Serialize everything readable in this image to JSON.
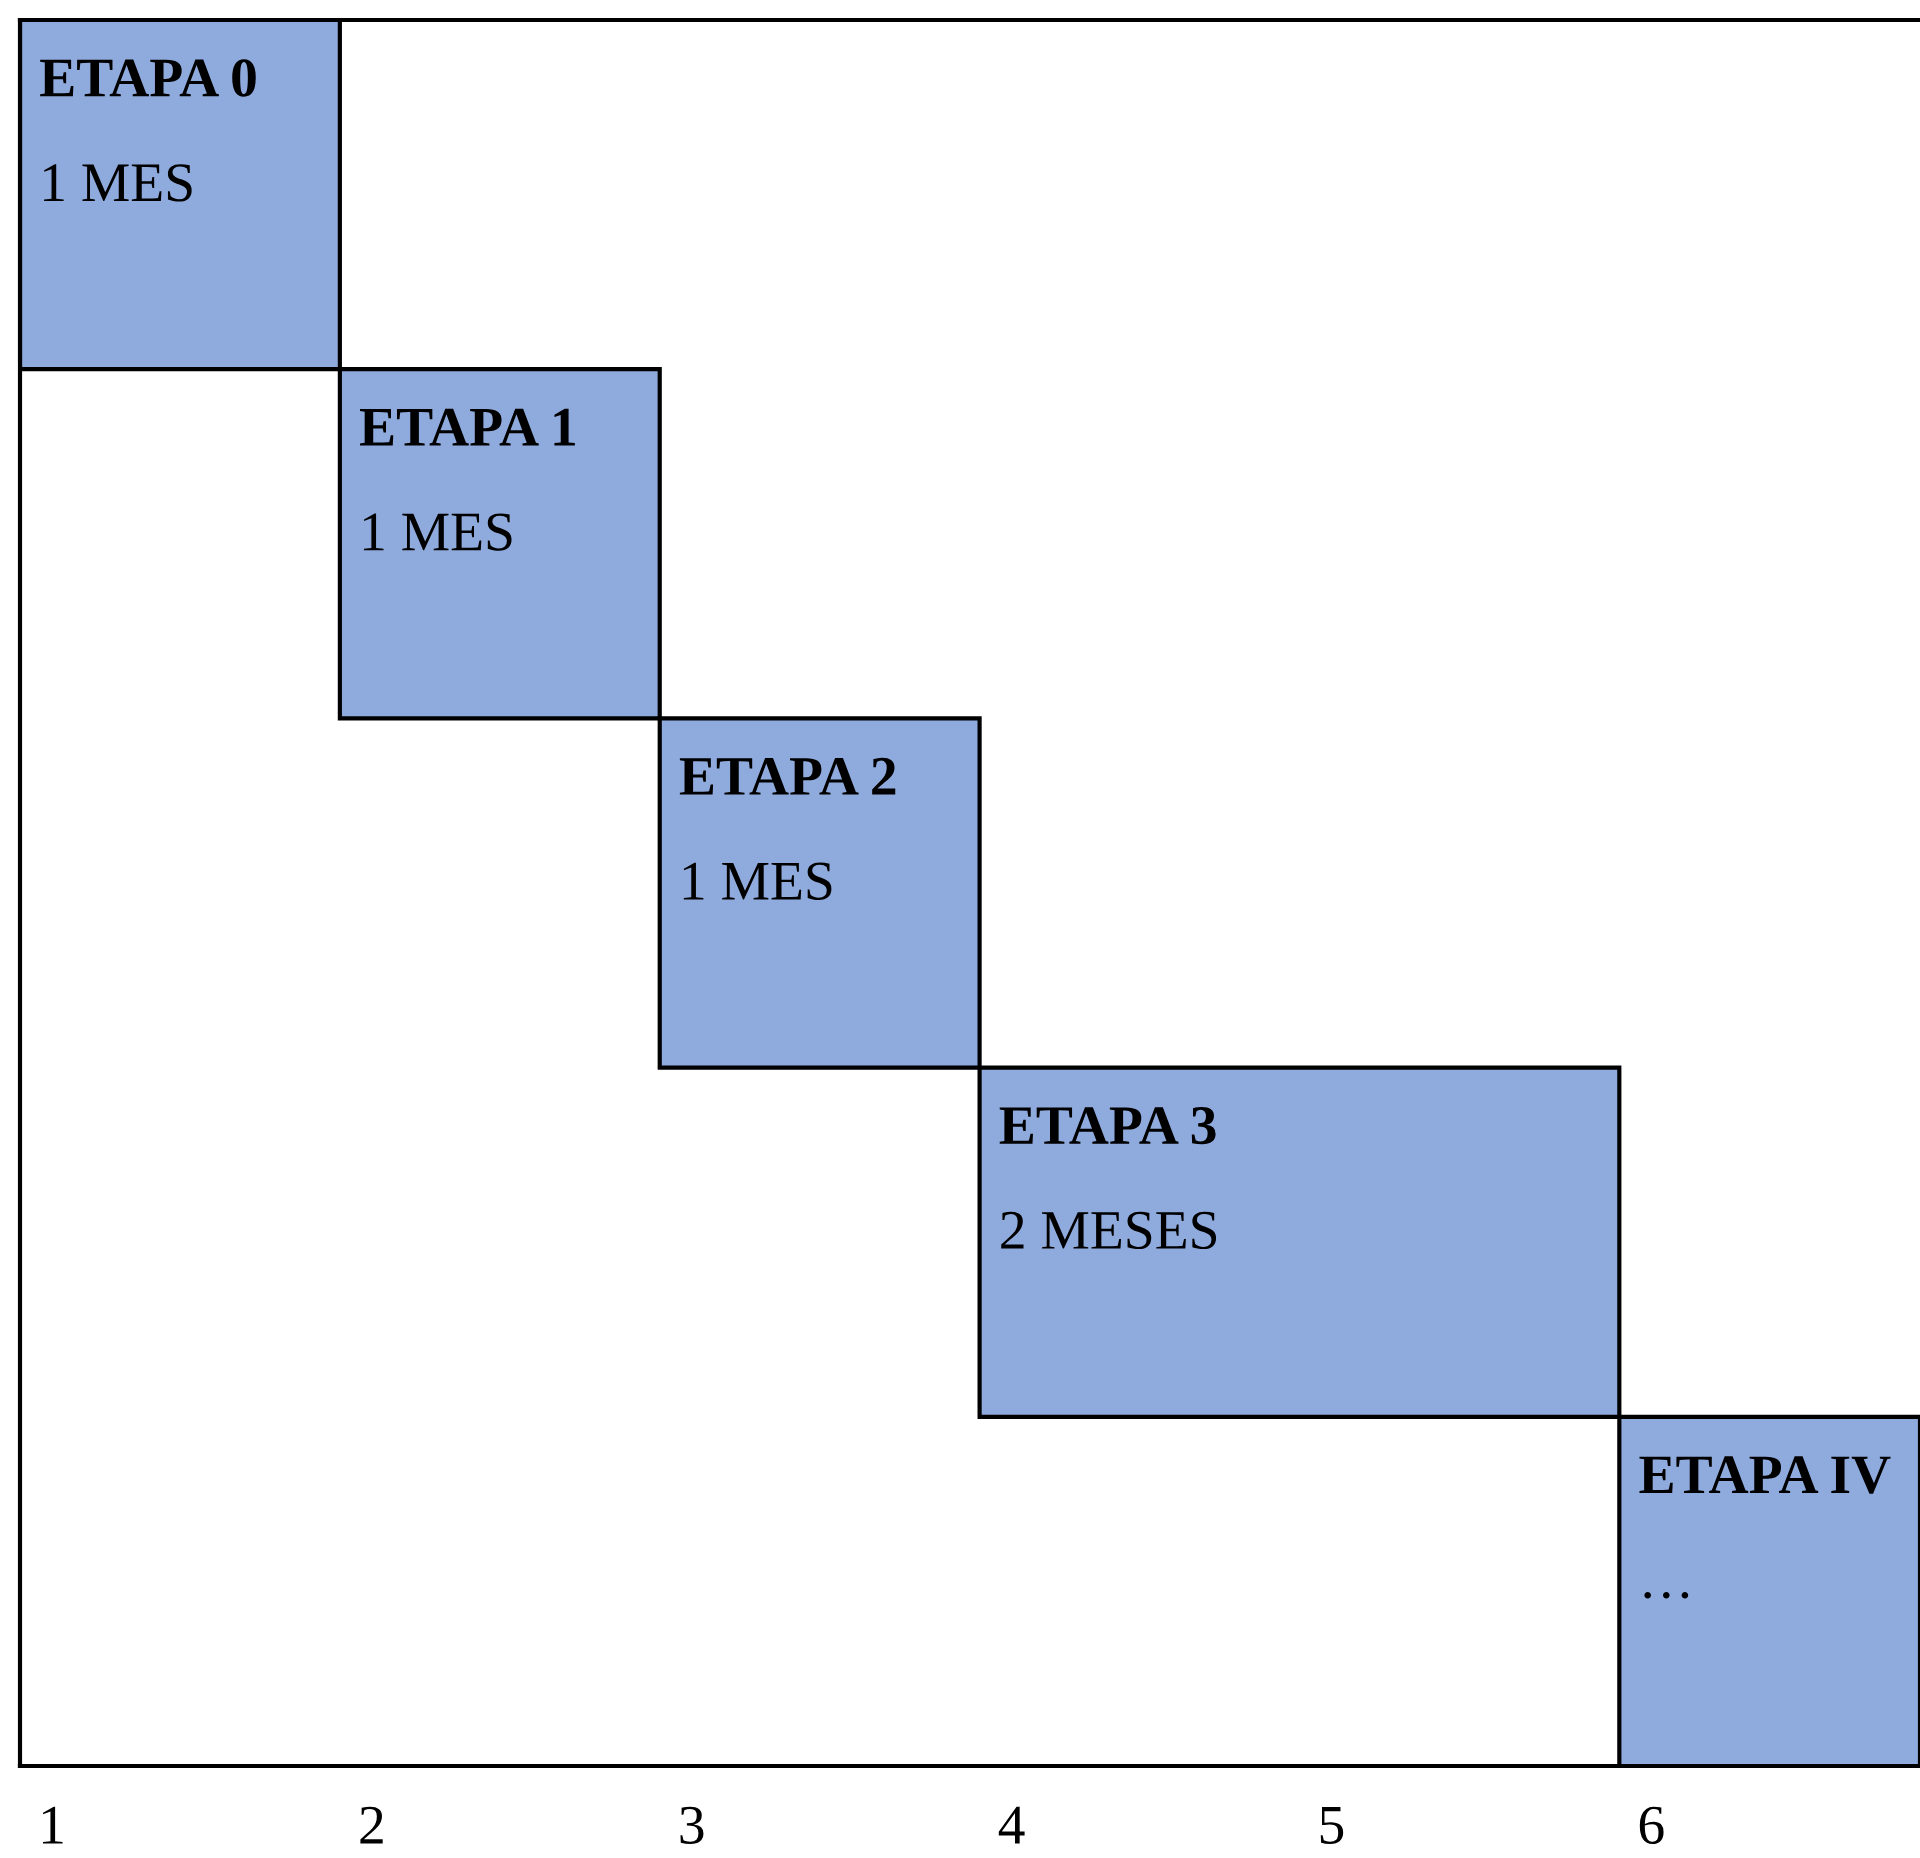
{
  "chart_data": {
    "type": "bar",
    "orientation": "horizontal",
    "categories": [
      "ETAPA 0",
      "ETAPA 1",
      "ETAPA 2",
      "ETAPA 3",
      "ETAPA IV"
    ],
    "base": [
      0.9,
      1.9,
      2.9,
      3.9,
      5.9
    ],
    "values": [
      1,
      1,
      1,
      2,
      0.94
    ],
    "value_labels": [
      "1 MES",
      "1 MES",
      "1 MES",
      "2 MESES",
      "…"
    ],
    "color": "#8faadc",
    "xlim": [
      0.9,
      6.84
    ],
    "xticks": [
      1,
      2,
      3,
      4,
      5,
      6
    ],
    "tick_labels": "x",
    "grid": false,
    "legend": false
  }
}
